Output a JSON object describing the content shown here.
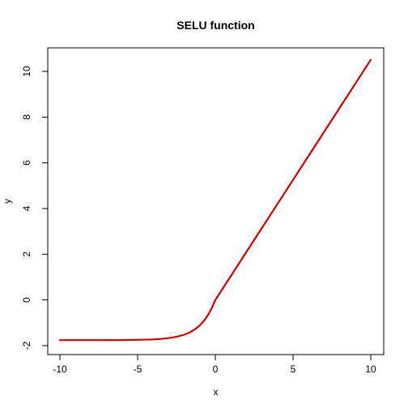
{
  "chart_data": {
    "type": "line",
    "title": "SELU function",
    "xlabel": "x",
    "ylabel": "y",
    "xlim": [
      -10,
      10
    ],
    "ylim": [
      -2,
      10.5
    ],
    "x_ticks": [
      -10,
      -5,
      0,
      5,
      10
    ],
    "y_ticks": [
      -2,
      0,
      2,
      4,
      6,
      8,
      10
    ],
    "x_tick_labels": [
      "-10",
      "-5",
      "0",
      "5",
      "10"
    ],
    "y_tick_labels": [
      "-2",
      "0",
      "2",
      "4",
      "6",
      "8",
      "10"
    ],
    "grid": false,
    "legend": "none",
    "series": [
      {
        "color": "#cc0000",
        "x": [
          -10,
          -9,
          -8,
          -7,
          -6,
          -5,
          -4,
          -3.5,
          -3,
          -2.5,
          -2,
          -1.75,
          -1.5,
          -1.25,
          -1,
          -0.75,
          -0.5,
          -0.25,
          0,
          0.5,
          1,
          2,
          3,
          4,
          5,
          6,
          7,
          8,
          9,
          10
        ],
        "y": [
          -1.758,
          -1.758,
          -1.758,
          -1.757,
          -1.754,
          -1.746,
          -1.726,
          -1.705,
          -1.671,
          -1.614,
          -1.52,
          -1.453,
          -1.365,
          -1.255,
          -1.111,
          -0.929,
          -0.692,
          -0.389,
          0,
          0.525,
          1.051,
          2.101,
          3.152,
          4.203,
          5.254,
          6.304,
          7.355,
          8.406,
          9.457,
          10.507
        ]
      }
    ]
  }
}
